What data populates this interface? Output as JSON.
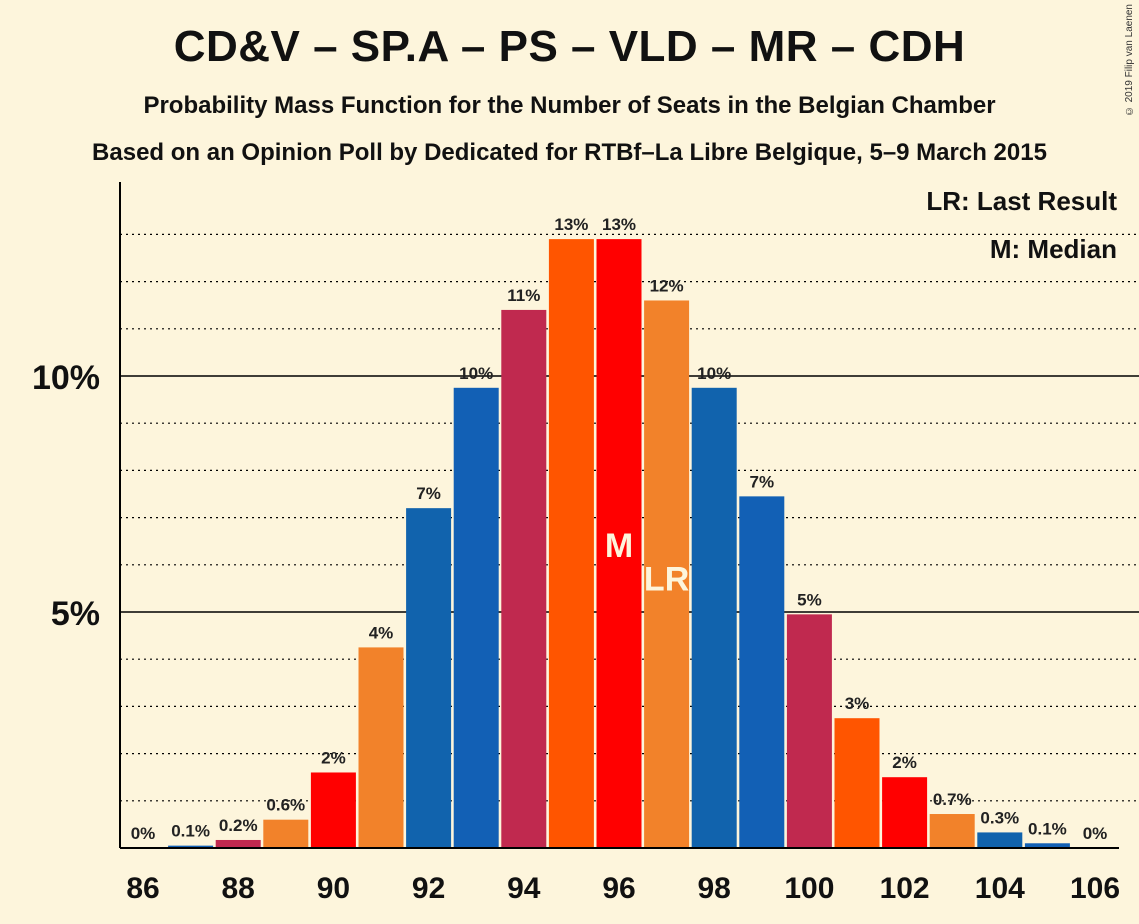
{
  "chart_data": {
    "type": "bar",
    "title": "CD&V – SP.A – PS – VLD – MR – CDH",
    "subtitle": "Probability Mass Function for the Number of Seats in the Belgian Chamber",
    "subtitle2": "Based on an Opinion Poll by Dedicated for RTBf–La Libre Belgique, 5–9 March 2015",
    "copyright": "© 2019 Filip van Laenen",
    "legend": {
      "last_result": "LR: Last Result",
      "median": "M: Median"
    },
    "x": [
      86,
      87,
      88,
      89,
      90,
      91,
      92,
      93,
      94,
      95,
      96,
      97,
      98,
      99,
      100,
      101,
      102,
      103,
      104,
      105,
      106
    ],
    "values": [
      0,
      0.05,
      0.17,
      0.6,
      1.6,
      4.25,
      7.2,
      9.75,
      11.4,
      12.9,
      12.9,
      11.6,
      9.75,
      7.45,
      4.95,
      2.75,
      1.5,
      0.72,
      0.33,
      0.1,
      0
    ],
    "labels": [
      "0%",
      "0.1%",
      "0.2%",
      "0.6%",
      "2%",
      "4%",
      "7%",
      "10%",
      "11%",
      "13%",
      "13%",
      "12%",
      "10%",
      "7%",
      "5%",
      "3%",
      "2%",
      "0.7%",
      "0.3%",
      "0.1%",
      "0%"
    ],
    "x_tick_labels": [
      "86",
      "88",
      "90",
      "92",
      "94",
      "96",
      "98",
      "100",
      "102",
      "104",
      "106"
    ],
    "y_tick_labels": [
      {
        "value": 5,
        "label": "5%"
      },
      {
        "value": 10,
        "label": "10%"
      }
    ],
    "ylim": [
      0,
      14
    ],
    "median": {
      "x": 96,
      "label": "M"
    },
    "last_result": {
      "x": 97,
      "label": "LR"
    },
    "colors": [
      "#c0294f",
      "#1260b5",
      "#c0294f",
      "#f2822a",
      "#ff0000",
      "#f2822a",
      "#1163ad",
      "#1260b5",
      "#c0294f",
      "#ff5500",
      "#ff0000",
      "#f2822a",
      "#1163ad",
      "#1260b5",
      "#c0294f",
      "#ff5500",
      "#ff0000",
      "#f2822a",
      "#1163ad",
      "#1260b5",
      "#c0294f"
    ]
  }
}
